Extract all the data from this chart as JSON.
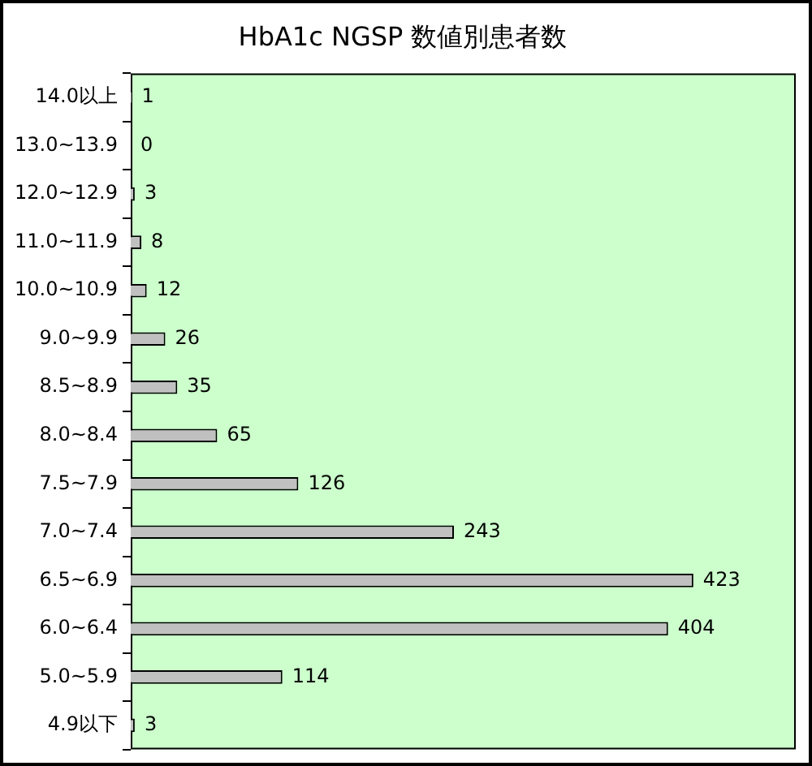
{
  "chart_data": {
    "type": "bar",
    "orientation": "horizontal",
    "title": "HbA1c NGSP 数値別患者数",
    "categories": [
      "14.0以上",
      "13.0~13.9",
      "12.0~12.9",
      "11.0~11.9",
      "10.0~10.9",
      "9.0~9.9",
      "8.5~8.9",
      "8.0~8.4",
      "7.5~7.9",
      "7.0~7.4",
      "6.5~6.9",
      "6.0~6.4",
      "5.0~5.9",
      "4.9以下"
    ],
    "values": [
      1,
      0,
      3,
      8,
      12,
      26,
      35,
      65,
      126,
      243,
      423,
      404,
      114,
      3
    ],
    "color": "#c0c0c0",
    "data_labels": true,
    "legend": false,
    "tick_labels": "y"
  }
}
